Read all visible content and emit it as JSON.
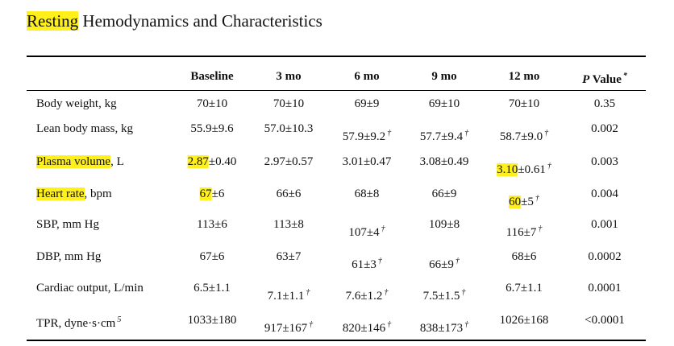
{
  "title": {
    "hl": "Resting",
    "text": " Hemodynamics and Characteristics"
  },
  "table": {
    "header": [
      {
        "text": "Baseline"
      },
      {
        "text": "3 mo"
      },
      {
        "text": "6 mo"
      },
      {
        "text": "9 mo"
      },
      {
        "text": "12 mo"
      },
      {
        "italic": "P",
        "text": " Value",
        "sup": "*"
      }
    ],
    "rows": [
      [
        {
          "text": "Body weight, kg"
        },
        {
          "text": "70±10"
        },
        {
          "text": "70±10"
        },
        {
          "text": "69±9"
        },
        {
          "text": "69±10"
        },
        {
          "text": "70±10"
        },
        {
          "text": "0.35"
        }
      ],
      [
        {
          "text": "Lean body mass, kg"
        },
        {
          "text": "55.9±9.6"
        },
        {
          "text": "57.0±10.3"
        },
        {
          "text": "57.9±9.2",
          "sup": "†"
        },
        {
          "text": "57.7±9.4",
          "sup": "†"
        },
        {
          "text": "58.7±9.0",
          "sup": "†"
        },
        {
          "text": "0.002"
        }
      ],
      [
        {
          "hl": "Plasma volume",
          "text": ", L"
        },
        {
          "hl": "2.87",
          "text": "±0.40"
        },
        {
          "text": "2.97±0.57"
        },
        {
          "text": "3.01±0.47"
        },
        {
          "text": "3.08±0.49"
        },
        {
          "hl": "3.10",
          "text": "±0.61",
          "sup": "†"
        },
        {
          "text": "0.003"
        }
      ],
      [
        {
          "hl": "Heart rate",
          "text": ", bpm"
        },
        {
          "hl": "67",
          "text": "±6"
        },
        {
          "text": "66±6"
        },
        {
          "text": "68±8"
        },
        {
          "text": "66±9"
        },
        {
          "hl": "60",
          "text": "±5",
          "sup": "†"
        },
        {
          "text": "0.004"
        }
      ],
      [
        {
          "text": "SBP, mm Hg"
        },
        {
          "text": "113±6"
        },
        {
          "text": "113±8"
        },
        {
          "text": "107±4",
          "sup": "†"
        },
        {
          "text": "109±8"
        },
        {
          "text": "116±7",
          "sup": "†"
        },
        {
          "text": "0.001"
        }
      ],
      [
        {
          "text": "DBP, mm Hg"
        },
        {
          "text": "67±6"
        },
        {
          "text": "63±7"
        },
        {
          "text": "61±3",
          "sup": "†"
        },
        {
          "text": "66±9",
          "sup": "†"
        },
        {
          "text": "68±6"
        },
        {
          "text": "0.0002"
        }
      ],
      [
        {
          "text": "Cardiac output, L/min"
        },
        {
          "text": "6.5±1.1"
        },
        {
          "text": "7.1±1.1",
          "sup": "†"
        },
        {
          "text": "7.6±1.2",
          "sup": "†"
        },
        {
          "text": "7.5±1.5",
          "sup": "†"
        },
        {
          "text": "6.7±1.1"
        },
        {
          "text": "0.0001"
        }
      ],
      [
        {
          "text": "TPR, dyne·s·cm",
          "sup": "5"
        },
        {
          "text": "1033±180"
        },
        {
          "text": "917±167",
          "sup": "†"
        },
        {
          "text": "820±146",
          "sup": "†"
        },
        {
          "text": "838±173",
          "sup": "†"
        },
        {
          "text": "1026±168"
        },
        {
          "text": "<0.0001"
        }
      ]
    ]
  }
}
